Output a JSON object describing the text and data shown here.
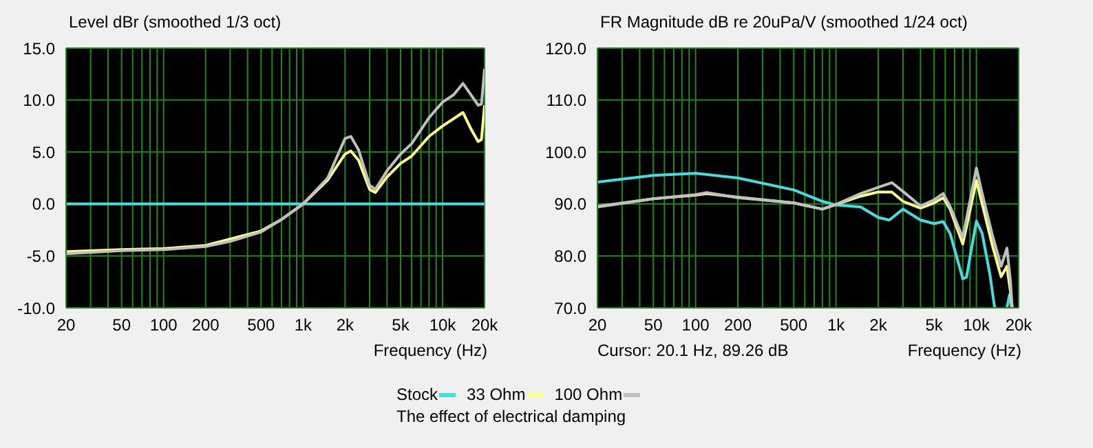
{
  "chart_data": [
    {
      "type": "line",
      "title": "Level dBr (smoothed 1/3 oct)",
      "xlabel": "Frequency (Hz)",
      "log": "x",
      "grid": true,
      "legend": "bottom",
      "xlim": [
        20,
        20000
      ],
      "xticks": [
        20,
        {
          "value": 30,
          "label": null
        },
        {
          "value": 40,
          "label": null
        },
        50,
        {
          "value": 60,
          "label": null
        },
        {
          "value": 70,
          "label": null
        },
        {
          "value": 80,
          "label": null
        },
        {
          "value": 90,
          "label": null
        },
        100,
        200,
        {
          "value": 300,
          "label": null
        },
        {
          "value": 400,
          "label": null
        },
        500,
        {
          "value": 600,
          "label": null
        },
        {
          "value": 700,
          "label": null
        },
        {
          "value": 800,
          "label": null
        },
        {
          "value": 900,
          "label": null
        },
        {
          "value": 1000,
          "label": "1k"
        },
        {
          "value": 2000,
          "label": "2k"
        },
        {
          "value": 3000,
          "label": null
        },
        {
          "value": 4000,
          "label": null
        },
        {
          "value": 5000,
          "label": "5k"
        },
        {
          "value": 6000,
          "label": null
        },
        {
          "value": 7000,
          "label": null
        },
        {
          "value": 8000,
          "label": null
        },
        {
          "value": 9000,
          "label": null
        },
        {
          "value": 10000,
          "label": "10k"
        },
        {
          "value": 20000,
          "label": "20k"
        }
      ],
      "ylim": [
        -10,
        15
      ],
      "yticks": [
        {
          "value": -10,
          "label": "-10.0"
        },
        {
          "value": -5,
          "label": "-5.0"
        },
        {
          "value": 0,
          "label": "0.0"
        },
        {
          "value": 5,
          "label": "5.0"
        },
        {
          "value": 10,
          "label": "10.0"
        },
        {
          "value": 15,
          "label": "15.0"
        }
      ],
      "annotations": [
        "The effect of electrical damping"
      ],
      "series": [
        {
          "name": "Stock",
          "color": "#40e0e0",
          "x": [
            20,
            20000
          ],
          "values": [
            0,
            0
          ]
        },
        {
          "name": "33 Ohm",
          "color": "#ffff80",
          "x": [
            20,
            50,
            100,
            200,
            500,
            700,
            1000,
            1500,
            2000,
            2200,
            2500,
            3000,
            3300,
            4000,
            5000,
            6000,
            8000,
            10000,
            14000,
            16000,
            18000,
            19000,
            20000
          ],
          "values": [
            -4.6,
            -4.4,
            -4.3,
            -4.0,
            -2.6,
            -1.5,
            0,
            2.3,
            4.8,
            5.1,
            4.2,
            1.4,
            1.1,
            2.6,
            3.9,
            4.6,
            6.5,
            7.5,
            8.8,
            7.2,
            6.0,
            6.2,
            9.5
          ]
        },
        {
          "name": "100 Ohm",
          "color": "#c0c0c0",
          "x": [
            20,
            50,
            100,
            200,
            300,
            500,
            700,
            1000,
            1500,
            2000,
            2200,
            2500,
            3000,
            3300,
            4000,
            5000,
            6000,
            8000,
            10000,
            12000,
            14000,
            16000,
            18000,
            19000,
            20000
          ],
          "values": [
            -4.8,
            -4.5,
            -4.4,
            -4.1,
            -3.6,
            -2.7,
            -1.5,
            0,
            2.5,
            6.3,
            6.5,
            5.2,
            1.8,
            1.4,
            3.2,
            4.8,
            5.8,
            8.3,
            9.8,
            10.5,
            11.6,
            10.5,
            9.5,
            9.6,
            13
          ]
        }
      ]
    },
    {
      "type": "line",
      "title": "FR Magnitude dB re 20uPa/V (smoothed 1/24 oct)",
      "xlabel": "Frequency (Hz)",
      "log": "x",
      "grid": true,
      "xlim": [
        20,
        20000
      ],
      "xticks": [
        20,
        {
          "value": 30,
          "label": null
        },
        {
          "value": 40,
          "label": null
        },
        50,
        {
          "value": 60,
          "label": null
        },
        {
          "value": 70,
          "label": null
        },
        {
          "value": 80,
          "label": null
        },
        {
          "value": 90,
          "label": null
        },
        100,
        200,
        {
          "value": 300,
          "label": null
        },
        {
          "value": 400,
          "label": null
        },
        500,
        {
          "value": 600,
          "label": null
        },
        {
          "value": 700,
          "label": null
        },
        {
          "value": 800,
          "label": null
        },
        {
          "value": 900,
          "label": null
        },
        {
          "value": 1000,
          "label": "1k"
        },
        {
          "value": 2000,
          "label": "2k"
        },
        {
          "value": 3000,
          "label": null
        },
        {
          "value": 4000,
          "label": null
        },
        {
          "value": 5000,
          "label": "5k"
        },
        {
          "value": 6000,
          "label": null
        },
        {
          "value": 7000,
          "label": null
        },
        {
          "value": 8000,
          "label": null
        },
        {
          "value": 9000,
          "label": null
        },
        {
          "value": 10000,
          "label": "10k"
        },
        {
          "value": 20000,
          "label": "20k"
        }
      ],
      "ylim": [
        70,
        120
      ],
      "yticks": [
        {
          "value": 70,
          "label": "70.0"
        },
        {
          "value": 80,
          "label": "80.0"
        },
        {
          "value": 90,
          "label": "90.0"
        },
        {
          "value": 100,
          "label": "100.0"
        },
        {
          "value": 110,
          "label": "110.0"
        },
        {
          "value": 120,
          "label": "120.0"
        }
      ],
      "annotations": [
        "Cursor: 20.1 Hz, 89.26 dB"
      ],
      "series": [
        {
          "color": "#40e0e0",
          "x": [
            20,
            50,
            100,
            200,
            500,
            800,
            1000,
            1500,
            2000,
            2400,
            3000,
            4000,
            5000,
            5800,
            6500,
            8000,
            8500,
            10000,
            11000,
            12500,
            13500,
            15000,
            16500,
            17200,
            17800
          ],
          "values": [
            94.2,
            95.5,
            95.9,
            95.0,
            92.7,
            90.5,
            89.8,
            89.4,
            87.4,
            86.9,
            89.0,
            86.9,
            86.2,
            86.6,
            84.3,
            75.6,
            75.9,
            86.7,
            84.3,
            76.3,
            70,
            null,
            70,
            72.5,
            70
          ]
        },
        {
          "color": "#ffff80",
          "x": [
            20,
            50,
            100,
            120,
            200,
            500,
            800,
            1000,
            1500,
            2000,
            2500,
            3000,
            4000,
            5000,
            5800,
            6500,
            8000,
            10000,
            11000,
            13000,
            15000,
            16500,
            17500,
            18000
          ],
          "values": [
            89.5,
            91.0,
            91.7,
            92.0,
            91.3,
            90.2,
            89.0,
            89.9,
            91.5,
            92.3,
            92.3,
            90.5,
            89.2,
            90.2,
            91.2,
            89.0,
            82.3,
            94.5,
            90,
            82,
            76,
            78,
            73,
            70
          ]
        },
        {
          "color": "#c0c0c0",
          "x": [
            20,
            50,
            100,
            120,
            200,
            500,
            800,
            1000,
            1500,
            2000,
            2500,
            3000,
            4000,
            5000,
            5800,
            6500,
            8000,
            10000,
            11000,
            13000,
            15000,
            16500,
            17500,
            18000
          ],
          "values": [
            89.4,
            91.0,
            91.8,
            92.2,
            91.2,
            90.2,
            89.0,
            89.9,
            92,
            93.2,
            94.1,
            92.4,
            89.6,
            90.8,
            92.0,
            89.5,
            83.5,
            96.9,
            92,
            84,
            78,
            81.5,
            75,
            70
          ]
        }
      ]
    }
  ]
}
